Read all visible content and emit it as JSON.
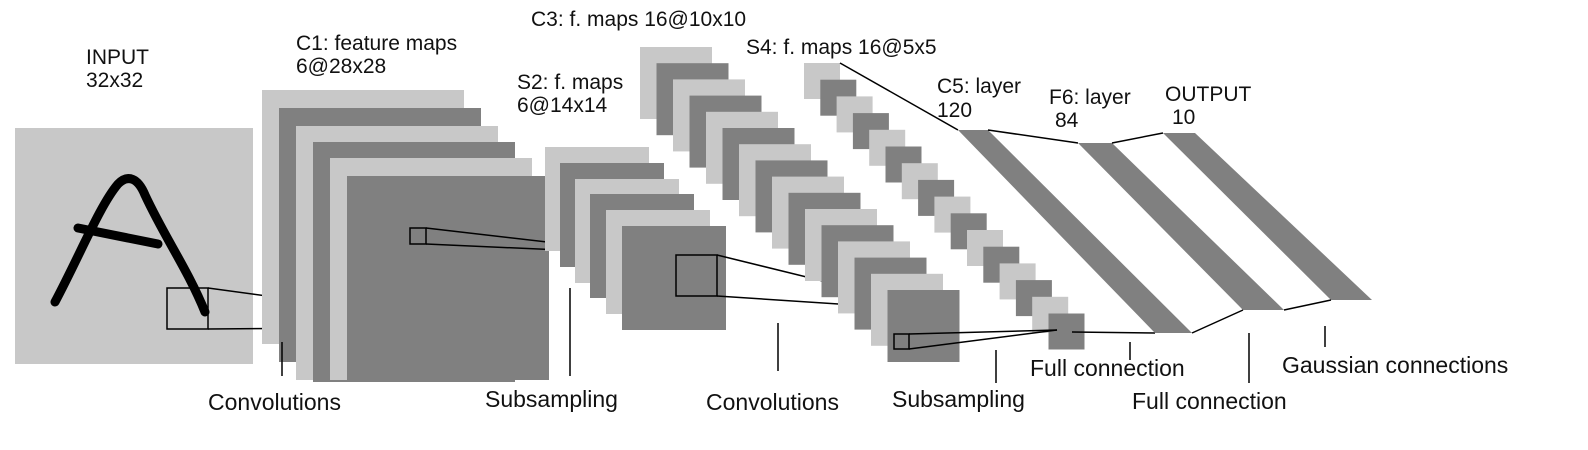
{
  "colors": {
    "background": "#ffffff",
    "light_gray": "#c8c8c8",
    "dark_gray": "#808080",
    "input_gray": "#c8c8c8",
    "ink": "#000000"
  },
  "layers": {
    "input": {
      "title": "INPUT",
      "size": "32x32",
      "glyph": "A"
    },
    "c1": {
      "title": "C1: feature maps",
      "size": "6@28x28"
    },
    "s2": {
      "title": "S2: f. maps",
      "size": "6@14x14"
    },
    "c3": {
      "title": "C3: f. maps 16@10x10"
    },
    "s4": {
      "title": "S4: f. maps 16@5x5"
    },
    "c5": {
      "title": "C5: layer",
      "size": "120"
    },
    "f6": {
      "title": "F6: layer",
      "size": "84"
    },
    "output": {
      "title": "OUTPUT",
      "size": "10"
    }
  },
  "operations": {
    "conv1": "Convolutions",
    "sub1": "Subsampling",
    "conv2": "Convolutions",
    "sub2": "Subsampling",
    "full1": "Full connection",
    "full2": "Full connection",
    "gauss": "Gaussian connections"
  }
}
